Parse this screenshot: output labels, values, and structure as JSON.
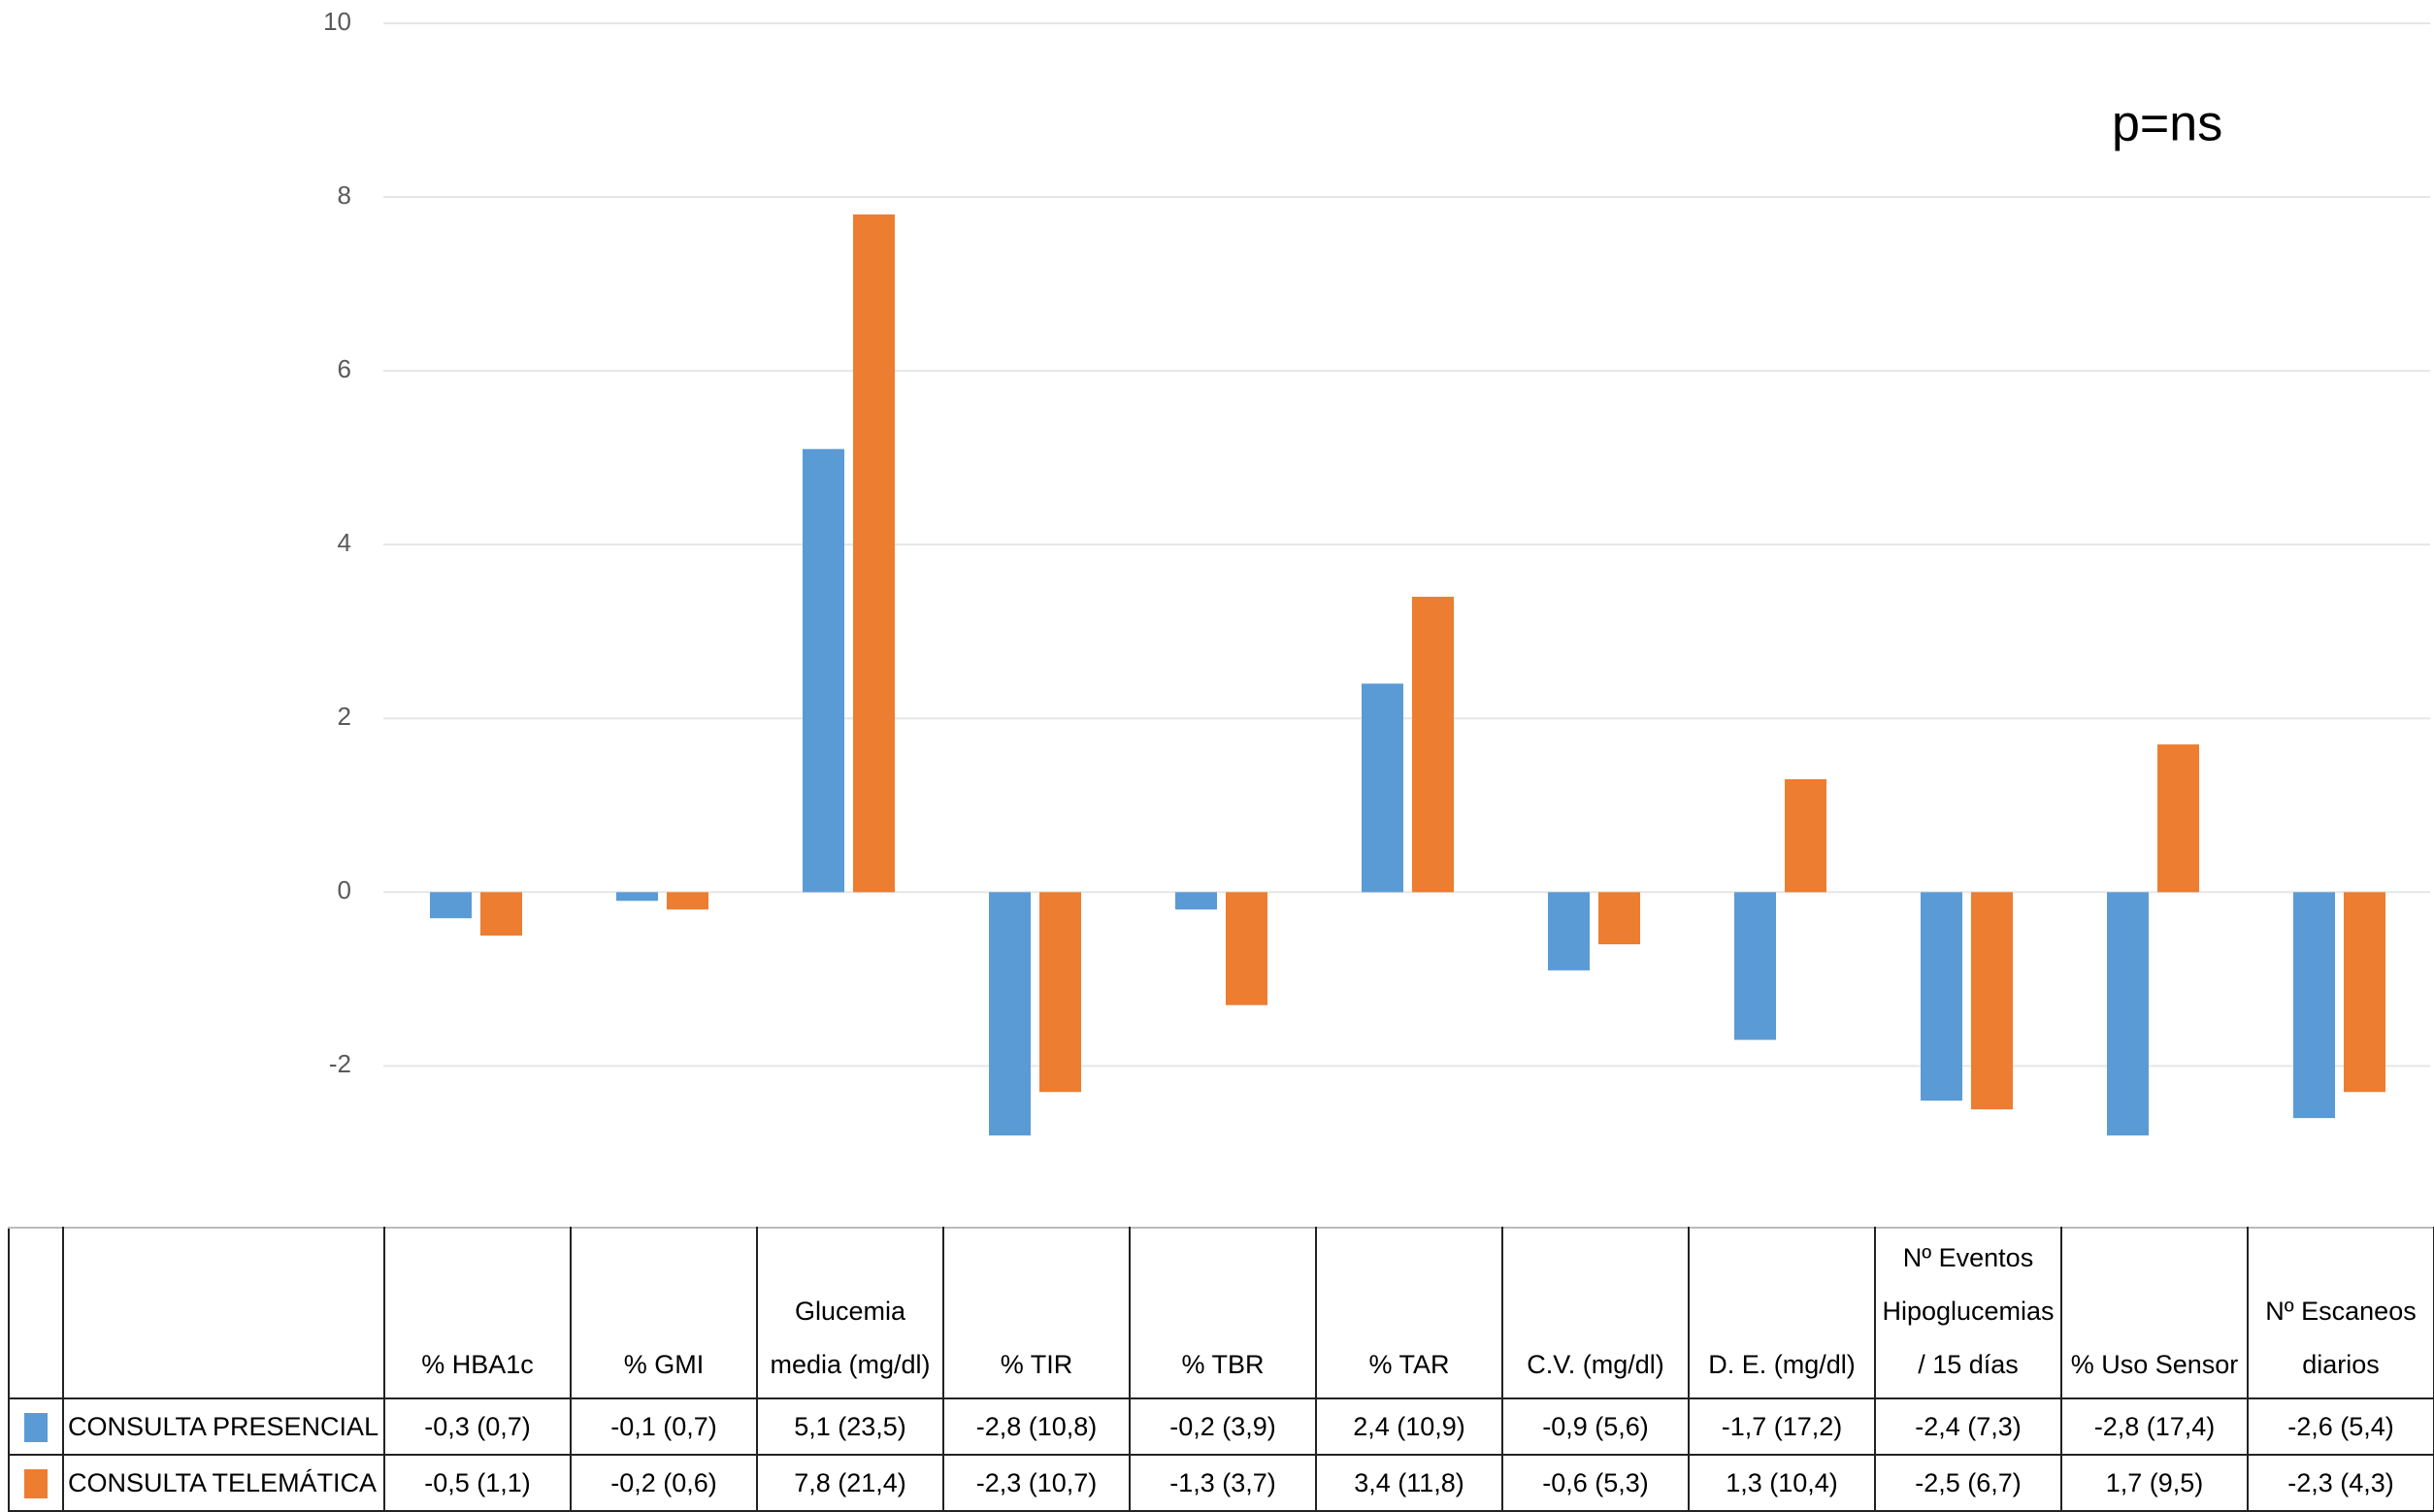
{
  "chart_data": {
    "type": "bar",
    "annotation": "p=ns",
    "categories": [
      "% HBA1c",
      "% GMI",
      "Glucemia media (mg/dl)",
      "% TIR",
      "% TBR",
      "% TAR",
      "C.V. (mg/dl)",
      "D. E. (mg/dl)",
      "Nº Eventos Hipoglucemias / 15 días",
      "%  Uso Sensor",
      "Nº Escaneos diarios"
    ],
    "series": [
      {
        "name": "CONSULTA PRESENCIAL",
        "color": "#5b9bd5",
        "values": [
          -0.3,
          -0.1,
          5.1,
          -2.8,
          -0.2,
          2.4,
          -0.9,
          -1.7,
          -2.4,
          -2.8,
          -2.6
        ],
        "value_labels": [
          "-0,3 (0,7)",
          "-0,1 (0,7)",
          "5,1 (23,5)",
          "-2,8 (10,8)",
          "-0,2 (3,9)",
          "2,4 (10,9)",
          "-0,9 (5,6)",
          "-1,7 (17,2)",
          "-2,4 (7,3)",
          "-2,8 (17,4)",
          "-2,6 (5,4)"
        ]
      },
      {
        "name": "CONSULTA TELEMÁTICA",
        "color": "#ed7d31",
        "values": [
          -0.5,
          -0.2,
          7.8,
          -2.3,
          -1.3,
          3.4,
          -0.6,
          1.3,
          -2.5,
          1.7,
          -2.3
        ],
        "value_labels": [
          "-0,5 (1,1)",
          "-0,2 (0,6)",
          "7,8 (21,4)",
          "-2,3 (10,7)",
          "-1,3 (3,7)",
          "3,4 (11,8)",
          "-0,6 (5,3)",
          "1,3 (10,4)",
          "-2,5 (6,7)",
          "1,7 (9,5)",
          "-2,3 (4,3)"
        ]
      }
    ],
    "ylim": [
      -3.85,
      10
    ],
    "yticks": [
      -2,
      0,
      2,
      4,
      6,
      8,
      10
    ],
    "grid": true
  }
}
